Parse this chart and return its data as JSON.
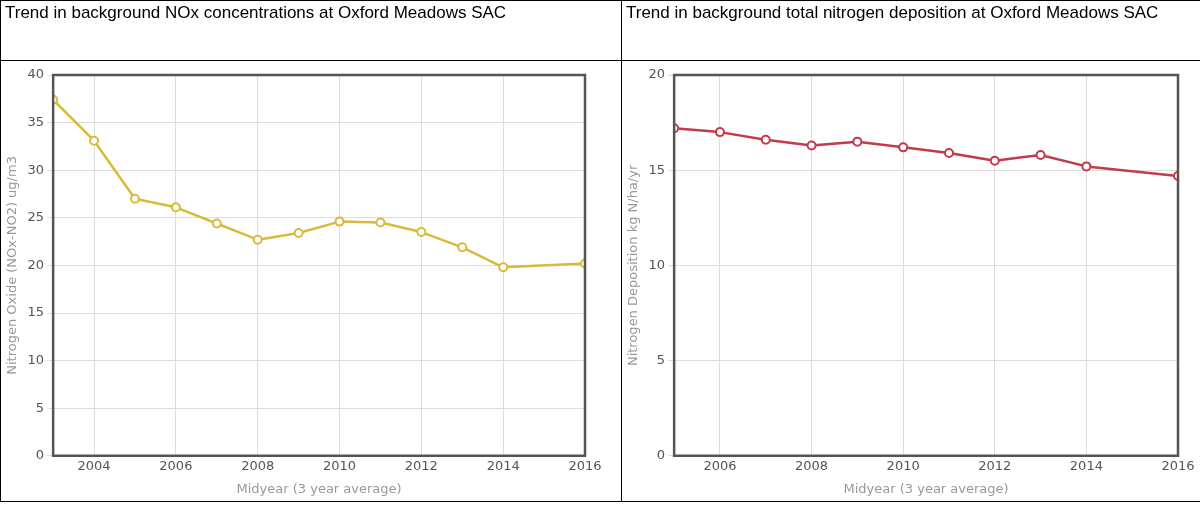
{
  "chart_data": [
    {
      "type": "line",
      "title": "Trend in background NOx concentrations at Oxford Meadows SAC",
      "xlabel": "Midyear (3 year average)",
      "ylabel": "Nitrogen Oxide (NOx-NO2) ug/m3",
      "x": [
        2003,
        2004,
        2005,
        2006,
        2007,
        2008,
        2009,
        2010,
        2011,
        2012,
        2013,
        2014,
        2016
      ],
      "series": [
        {
          "color": "#d8bb3c",
          "values": [
            37.4,
            33.1,
            27.0,
            26.1,
            24.4,
            22.7,
            23.4,
            24.6,
            24.5,
            23.5,
            21.9,
            19.8,
            20.2
          ]
        }
      ],
      "xlim": [
        2003,
        2016
      ],
      "xticks": [
        2004,
        2006,
        2008,
        2010,
        2012,
        2014,
        2016
      ],
      "ylim": [
        0,
        40
      ],
      "yticks": [
        0,
        5,
        10,
        15,
        20,
        25,
        30,
        35,
        40
      ],
      "grid": true,
      "marker": "circle"
    },
    {
      "type": "line",
      "title": "Trend in background total nitrogen deposition at Oxford Meadows SAC",
      "xlabel": "Midyear (3 year average)",
      "ylabel": "Nitrogen Deposition kg N/ha/yr",
      "x": [
        2005,
        2006,
        2007,
        2008,
        2009,
        2010,
        2011,
        2012,
        2013,
        2014,
        2016
      ],
      "series": [
        {
          "color": "#c23b4a",
          "values": [
            17.2,
            17.0,
            16.6,
            16.3,
            16.5,
            16.2,
            15.9,
            15.5,
            15.8,
            15.2,
            14.7
          ]
        }
      ],
      "xlim": [
        2005,
        2016
      ],
      "xticks": [
        2006,
        2008,
        2010,
        2012,
        2014,
        2016
      ],
      "ylim": [
        0,
        20
      ],
      "yticks": [
        0,
        5,
        10,
        15,
        20
      ],
      "grid": true,
      "marker": "circle"
    }
  ]
}
